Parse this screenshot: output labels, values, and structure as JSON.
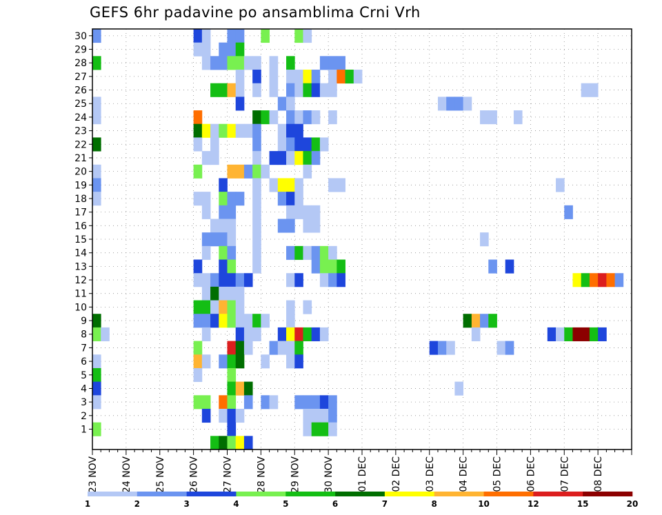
{
  "chart_data": {
    "type": "heatmap",
    "title": "GEFS 6hr padavine po ansamblima Crni Vrh",
    "xlabel": "",
    "ylabel": "",
    "grid": true,
    "y_tick_labels": [
      "1",
      "2",
      "3",
      "4",
      "5",
      "6",
      "7",
      "8",
      "9",
      "10",
      "11",
      "12",
      "13",
      "14",
      "15",
      "16",
      "17",
      "18",
      "19",
      "20",
      "21",
      "22",
      "23",
      "24",
      "25",
      "26",
      "27",
      "28",
      "29",
      "30"
    ],
    "x_tick_labels": [
      "23 NOV",
      "24 NOV",
      "25 NOV",
      "26 NOV",
      "27 NOV",
      "28 NOV",
      "29 NOV",
      "30 NOV",
      "01 DEC",
      "02 DEC",
      "03 DEC",
      "04 DEC",
      "05 DEC",
      "06 DEC",
      "07 DEC",
      "08 DEC"
    ],
    "colorbar": {
      "labels": [
        "1",
        "2",
        "3",
        "4",
        "5",
        "6",
        "7",
        "8",
        "10",
        "12",
        "15",
        "20"
      ],
      "colors": [
        "#b4c8f5",
        "#6b94f0",
        "#1e46dc",
        "#78f050",
        "#14be14",
        "#006e00",
        "#ffff00",
        "#ffb432",
        "#ff6e00",
        "#dc1e1e",
        "#8c0000"
      ]
    },
    "value_levels": [
      1,
      2,
      3,
      4,
      5,
      6,
      7,
      8,
      10,
      12,
      15,
      20
    ],
    "cells_note": "each cell: [member, step (6h from 23 NOV 00Z), color class 0-10]",
    "cells": [
      [
        30,
        0,
        1
      ],
      [
        30,
        12,
        2
      ],
      [
        30,
        13,
        0
      ],
      [
        30,
        16,
        1
      ],
      [
        30,
        17,
        1
      ],
      [
        30,
        20,
        3
      ],
      [
        30,
        24,
        3
      ],
      [
        30,
        25,
        0
      ],
      [
        29,
        12,
        0
      ],
      [
        29,
        13,
        0
      ],
      [
        29,
        15,
        1
      ],
      [
        29,
        16,
        1
      ],
      [
        29,
        17,
        4
      ],
      [
        28,
        0,
        4
      ],
      [
        28,
        13,
        0
      ],
      [
        28,
        14,
        1
      ],
      [
        28,
        15,
        1
      ],
      [
        28,
        16,
        3
      ],
      [
        28,
        17,
        3
      ],
      [
        28,
        18,
        0
      ],
      [
        28,
        19,
        0
      ],
      [
        28,
        21,
        0
      ],
      [
        28,
        23,
        4
      ],
      [
        28,
        27,
        1
      ],
      [
        28,
        28,
        1
      ],
      [
        28,
        29,
        1
      ],
      [
        27,
        17,
        0
      ],
      [
        27,
        19,
        2
      ],
      [
        27,
        21,
        0
      ],
      [
        27,
        23,
        0
      ],
      [
        27,
        24,
        0
      ],
      [
        27,
        25,
        6
      ],
      [
        27,
        26,
        1
      ],
      [
        27,
        28,
        0
      ],
      [
        27,
        29,
        8
      ],
      [
        27,
        30,
        4
      ],
      [
        27,
        31,
        0
      ],
      [
        26,
        14,
        4
      ],
      [
        26,
        15,
        4
      ],
      [
        26,
        16,
        7
      ],
      [
        26,
        17,
        0
      ],
      [
        26,
        19,
        0
      ],
      [
        26,
        21,
        0
      ],
      [
        26,
        23,
        1
      ],
      [
        26,
        24,
        0
      ],
      [
        26,
        25,
        4
      ],
      [
        26,
        26,
        2
      ],
      [
        26,
        27,
        0
      ],
      [
        26,
        28,
        0
      ],
      [
        26,
        58,
        0
      ],
      [
        26,
        59,
        0
      ],
      [
        25,
        0,
        0
      ],
      [
        25,
        17,
        2
      ],
      [
        25,
        22,
        1
      ],
      [
        25,
        23,
        0
      ],
      [
        25,
        41,
        0
      ],
      [
        25,
        42,
        1
      ],
      [
        25,
        43,
        1
      ],
      [
        25,
        44,
        0
      ],
      [
        24,
        0,
        0
      ],
      [
        24,
        12,
        8
      ],
      [
        24,
        19,
        5
      ],
      [
        24,
        20,
        4
      ],
      [
        24,
        21,
        0
      ],
      [
        24,
        23,
        1
      ],
      [
        24,
        24,
        0
      ],
      [
        24,
        25,
        1
      ],
      [
        24,
        26,
        0
      ],
      [
        24,
        28,
        0
      ],
      [
        24,
        46,
        0
      ],
      [
        24,
        47,
        0
      ],
      [
        24,
        50,
        0
      ],
      [
        23,
        12,
        5
      ],
      [
        23,
        13,
        6
      ],
      [
        23,
        14,
        0
      ],
      [
        23,
        15,
        3
      ],
      [
        23,
        16,
        6
      ],
      [
        23,
        17,
        0
      ],
      [
        23,
        18,
        0
      ],
      [
        23,
        19,
        1
      ],
      [
        23,
        22,
        0
      ],
      [
        23,
        23,
        2
      ],
      [
        23,
        24,
        2
      ],
      [
        22,
        0,
        5
      ],
      [
        22,
        12,
        0
      ],
      [
        22,
        14,
        0
      ],
      [
        22,
        19,
        1
      ],
      [
        22,
        22,
        0
      ],
      [
        22,
        23,
        1
      ],
      [
        22,
        24,
        2
      ],
      [
        22,
        25,
        2
      ],
      [
        22,
        26,
        4
      ],
      [
        22,
        27,
        0
      ],
      [
        21,
        13,
        0
      ],
      [
        21,
        14,
        0
      ],
      [
        21,
        19,
        0
      ],
      [
        21,
        21,
        2
      ],
      [
        21,
        22,
        2
      ],
      [
        21,
        23,
        0
      ],
      [
        21,
        24,
        6
      ],
      [
        21,
        25,
        4
      ],
      [
        21,
        26,
        1
      ],
      [
        20,
        0,
        0
      ],
      [
        20,
        12,
        3
      ],
      [
        20,
        16,
        7
      ],
      [
        20,
        17,
        7
      ],
      [
        20,
        18,
        1
      ],
      [
        20,
        19,
        3
      ],
      [
        20,
        20,
        0
      ],
      [
        20,
        25,
        0
      ],
      [
        19,
        0,
        1
      ],
      [
        19,
        15,
        2
      ],
      [
        19,
        19,
        0
      ],
      [
        19,
        21,
        0
      ],
      [
        19,
        22,
        6
      ],
      [
        19,
        23,
        6
      ],
      [
        19,
        24,
        0
      ],
      [
        19,
        28,
        0
      ],
      [
        19,
        29,
        0
      ],
      [
        19,
        55,
        0
      ],
      [
        18,
        0,
        0
      ],
      [
        18,
        12,
        0
      ],
      [
        18,
        13,
        0
      ],
      [
        18,
        15,
        3
      ],
      [
        18,
        16,
        1
      ],
      [
        18,
        17,
        1
      ],
      [
        18,
        19,
        0
      ],
      [
        18,
        22,
        1
      ],
      [
        18,
        23,
        2
      ],
      [
        18,
        24,
        0
      ],
      [
        17,
        13,
        0
      ],
      [
        17,
        15,
        1
      ],
      [
        17,
        16,
        1
      ],
      [
        17,
        19,
        0
      ],
      [
        17,
        23,
        0
      ],
      [
        17,
        24,
        0
      ],
      [
        17,
        25,
        0
      ],
      [
        17,
        26,
        0
      ],
      [
        17,
        56,
        1
      ],
      [
        16,
        14,
        0
      ],
      [
        16,
        15,
        0
      ],
      [
        16,
        16,
        0
      ],
      [
        16,
        19,
        0
      ],
      [
        16,
        22,
        1
      ],
      [
        16,
        23,
        1
      ],
      [
        16,
        25,
        0
      ],
      [
        16,
        26,
        0
      ],
      [
        15,
        13,
        1
      ],
      [
        15,
        14,
        1
      ],
      [
        15,
        15,
        1
      ],
      [
        15,
        16,
        0
      ],
      [
        15,
        19,
        0
      ],
      [
        15,
        46,
        0
      ],
      [
        14,
        13,
        0
      ],
      [
        14,
        15,
        3
      ],
      [
        14,
        16,
        1
      ],
      [
        14,
        19,
        0
      ],
      [
        14,
        23,
        1
      ],
      [
        14,
        24,
        4
      ],
      [
        14,
        25,
        0
      ],
      [
        14,
        26,
        1
      ],
      [
        14,
        27,
        3
      ],
      [
        14,
        28,
        0
      ],
      [
        13,
        12,
        2
      ],
      [
        13,
        15,
        2
      ],
      [
        13,
        16,
        3
      ],
      [
        13,
        19,
        0
      ],
      [
        13,
        26,
        1
      ],
      [
        13,
        27,
        3
      ],
      [
        13,
        28,
        3
      ],
      [
        13,
        29,
        4
      ],
      [
        13,
        47,
        1
      ],
      [
        13,
        49,
        2
      ],
      [
        12,
        12,
        0
      ],
      [
        12,
        13,
        0
      ],
      [
        12,
        14,
        1
      ],
      [
        12,
        15,
        2
      ],
      [
        12,
        16,
        2
      ],
      [
        12,
        17,
        1
      ],
      [
        12,
        18,
        2
      ],
      [
        12,
        23,
        0
      ],
      [
        12,
        24,
        2
      ],
      [
        12,
        27,
        0
      ],
      [
        12,
        28,
        1
      ],
      [
        12,
        29,
        2
      ],
      [
        12,
        57,
        6
      ],
      [
        12,
        58,
        4
      ],
      [
        12,
        59,
        8
      ],
      [
        12,
        60,
        9
      ],
      [
        12,
        61,
        8
      ],
      [
        12,
        62,
        1
      ],
      [
        11,
        13,
        0
      ],
      [
        11,
        14,
        5
      ],
      [
        11,
        15,
        0
      ],
      [
        11,
        16,
        0
      ],
      [
        11,
        17,
        0
      ],
      [
        10,
        12,
        4
      ],
      [
        10,
        13,
        4
      ],
      [
        10,
        14,
        0
      ],
      [
        10,
        15,
        7
      ],
      [
        10,
        16,
        3
      ],
      [
        10,
        17,
        0
      ],
      [
        10,
        23,
        0
      ],
      [
        10,
        25,
        0
      ],
      [
        9,
        0,
        5
      ],
      [
        9,
        12,
        1
      ],
      [
        9,
        13,
        1
      ],
      [
        9,
        14,
        2
      ],
      [
        9,
        15,
        6
      ],
      [
        9,
        16,
        3
      ],
      [
        9,
        17,
        0
      ],
      [
        9,
        18,
        0
      ],
      [
        9,
        19,
        4
      ],
      [
        9,
        20,
        0
      ],
      [
        9,
        23,
        0
      ],
      [
        9,
        44,
        5
      ],
      [
        9,
        45,
        7
      ],
      [
        9,
        46,
        1
      ],
      [
        9,
        47,
        4
      ],
      [
        8,
        0,
        3
      ],
      [
        8,
        1,
        0
      ],
      [
        8,
        13,
        0
      ],
      [
        8,
        17,
        2
      ],
      [
        8,
        18,
        0
      ],
      [
        8,
        19,
        0
      ],
      [
        8,
        22,
        2
      ],
      [
        8,
        23,
        6
      ],
      [
        8,
        24,
        9
      ],
      [
        8,
        25,
        4
      ],
      [
        8,
        26,
        2
      ],
      [
        8,
        27,
        0
      ],
      [
        8,
        45,
        0
      ],
      [
        8,
        54,
        2
      ],
      [
        8,
        55,
        0
      ],
      [
        8,
        56,
        4
      ],
      [
        8,
        57,
        10
      ],
      [
        8,
        58,
        10
      ],
      [
        8,
        59,
        4
      ],
      [
        8,
        60,
        2
      ],
      [
        7,
        12,
        3
      ],
      [
        7,
        16,
        9
      ],
      [
        7,
        17,
        5
      ],
      [
        7,
        18,
        0
      ],
      [
        7,
        21,
        1
      ],
      [
        7,
        22,
        0
      ],
      [
        7,
        23,
        0
      ],
      [
        7,
        24,
        4
      ],
      [
        7,
        40,
        2
      ],
      [
        7,
        41,
        1
      ],
      [
        7,
        42,
        0
      ],
      [
        7,
        48,
        0
      ],
      [
        7,
        49,
        1
      ],
      [
        6,
        0,
        0
      ],
      [
        6,
        12,
        7
      ],
      [
        6,
        13,
        0
      ],
      [
        6,
        15,
        1
      ],
      [
        6,
        16,
        4
      ],
      [
        6,
        17,
        5
      ],
      [
        6,
        20,
        0
      ],
      [
        6,
        23,
        0
      ],
      [
        6,
        24,
        2
      ],
      [
        5,
        0,
        4
      ],
      [
        5,
        12,
        0
      ],
      [
        5,
        16,
        3
      ],
      [
        4,
        0,
        2
      ],
      [
        4,
        16,
        4
      ],
      [
        4,
        17,
        7
      ],
      [
        4,
        18,
        5
      ],
      [
        4,
        43,
        0
      ],
      [
        3,
        0,
        0
      ],
      [
        3,
        12,
        3
      ],
      [
        3,
        13,
        3
      ],
      [
        3,
        15,
        8
      ],
      [
        3,
        16,
        3
      ],
      [
        3,
        18,
        1
      ],
      [
        3,
        20,
        1
      ],
      [
        3,
        21,
        0
      ],
      [
        3,
        24,
        1
      ],
      [
        3,
        25,
        1
      ],
      [
        3,
        26,
        1
      ],
      [
        3,
        27,
        2
      ],
      [
        3,
        28,
        1
      ],
      [
        2,
        13,
        2
      ],
      [
        2,
        15,
        0
      ],
      [
        2,
        16,
        2
      ],
      [
        2,
        17,
        0
      ],
      [
        2,
        25,
        0
      ],
      [
        2,
        26,
        0
      ],
      [
        2,
        27,
        0
      ],
      [
        2,
        28,
        1
      ],
      [
        1,
        0,
        3
      ],
      [
        1,
        16,
        2
      ],
      [
        1,
        25,
        0
      ],
      [
        1,
        26,
        4
      ],
      [
        1,
        27,
        4
      ],
      [
        1,
        28,
        0
      ],
      [
        0,
        14,
        4
      ],
      [
        0,
        15,
        5
      ],
      [
        0,
        16,
        3
      ],
      [
        0,
        17,
        6
      ],
      [
        0,
        18,
        2
      ]
    ]
  }
}
